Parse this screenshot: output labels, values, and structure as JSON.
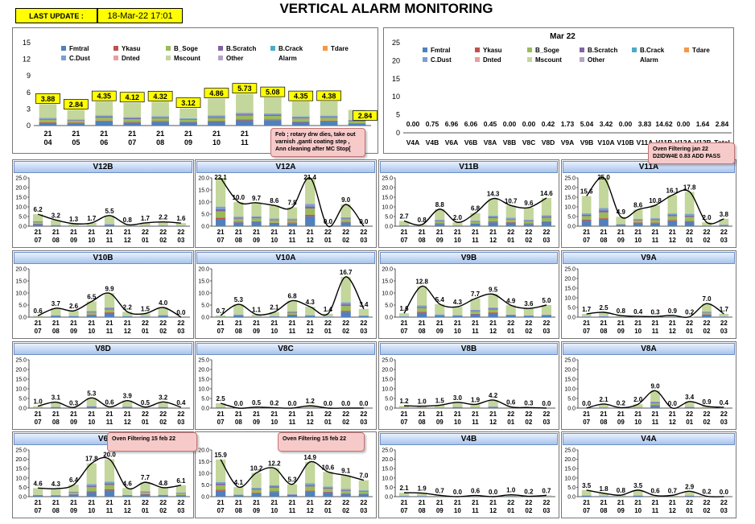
{
  "header": {
    "last_update_label": "LAST UPDATE :",
    "last_update_value": "18-Mar-22 17:01",
    "title": "VERTICAL ALARM MONITORING"
  },
  "legend": [
    "Fmtral",
    "Ykasu",
    "B_Soge",
    "B.Scratch",
    "B.Crack",
    "Tdare",
    "C.Dust",
    "Dnted",
    "Mscount",
    "Other",
    "Alarm"
  ],
  "colors": {
    "Fmtral": "#4f81bd",
    "Ykasu": "#c0504d",
    "B_Soge": "#9bbb59",
    "B.Scratch": "#8064a2",
    "B.Crack": "#4bacc6",
    "Tdare": "#f79646",
    "C.Dust": "#7ba0cd",
    "Dnted": "#e6a0a0",
    "Mscount": "#c3d69b",
    "Other": "#b3a2c7",
    "Alarm": "#ffffff"
  },
  "callouts": {
    "feb": "Feb ; rotary  drw dies, take out varnish ,ganti coating step , Ann cleaning  after MC Stop[",
    "v11a": "Oven Filtering  jan  22 D2IDW4E 0.83 ADD PASS",
    "v6": "Oven Filtering  15 feb 22",
    "v5": "Oven Filtering  15 feb 22"
  },
  "chart_data": [
    {
      "id": "top-left",
      "type": "bar",
      "categories": [
        "21 04",
        "21 05",
        "21 06",
        "21 07",
        "21 08",
        "21 09",
        "21 10",
        "21 11",
        "21 12",
        "22 01",
        "22 02",
        "22 03"
      ],
      "values": [
        3.88,
        2.84,
        4.35,
        4.12,
        4.32,
        3.12,
        4.86,
        5.73,
        5.08,
        4.35,
        4.38,
        2.84
      ],
      "ylim": [
        0,
        15
      ],
      "yticks": [
        0,
        3,
        6,
        9,
        12,
        15
      ]
    },
    {
      "id": "top-right",
      "type": "bar",
      "title": "Mar 22",
      "categories": [
        "V4A",
        "V4B",
        "V6A",
        "V6B",
        "V8A",
        "V8B",
        "V8C",
        "V8D",
        "V9A",
        "V9B",
        "V10A",
        "V10B",
        "V11A",
        "V11B",
        "V12A",
        "V12B",
        "Total"
      ],
      "values": [
        0.0,
        0.75,
        6.96,
        6.06,
        0.45,
        0.0,
        0.0,
        0.42,
        1.73,
        5.04,
        3.42,
        0.0,
        3.83,
        14.62,
        0.0,
        1.64,
        2.84
      ],
      "ylim": [
        0,
        25
      ],
      "yticks": [
        0,
        5,
        10,
        15,
        20,
        25
      ]
    },
    {
      "id": "V12B",
      "title": "V12B",
      "type": "bar",
      "categories": [
        "21 07",
        "21 08",
        "21 09",
        "21 10",
        "21 11",
        "21 12",
        "22 01",
        "22 02",
        "22 03"
      ],
      "values": [
        6.2,
        3.2,
        1.3,
        1.7,
        5.5,
        0.8,
        1.7,
        2.2,
        1.6
      ],
      "ylim": [
        0,
        25
      ],
      "yticks": [
        0,
        5,
        10,
        15,
        20,
        25
      ]
    },
    {
      "id": "V12A",
      "title": "V12A",
      "type": "bar",
      "categories": [
        "21 07",
        "21 08",
        "21 09",
        "21 10",
        "21 11",
        "21 12",
        "22 01",
        "22 02",
        "22 03"
      ],
      "values": [
        22.1,
        10.0,
        9.7,
        8.6,
        7.8,
        21.4,
        0.0,
        9.0,
        0.0
      ],
      "ylim": [
        0,
        20
      ],
      "yticks": [
        0,
        5,
        10,
        15,
        20
      ]
    },
    {
      "id": "V11B",
      "title": "V11B",
      "type": "bar",
      "categories": [
        "21 07",
        "21 08",
        "21 09",
        "21 10",
        "21 11",
        "21 12",
        "22 01",
        "22 02",
        "22 03"
      ],
      "values": [
        2.7,
        0.8,
        8.8,
        2.0,
        6.8,
        14.3,
        10.7,
        9.6,
        14.6
      ],
      "ylim": [
        0,
        25
      ],
      "yticks": [
        0,
        5,
        10,
        15,
        20,
        25
      ]
    },
    {
      "id": "V11A",
      "title": "V11A",
      "type": "bar",
      "categories": [
        "21 07",
        "21 08",
        "21 09",
        "21 10",
        "21 11",
        "21 12",
        "22 01",
        "22 02",
        "22 03"
      ],
      "values": [
        15.6,
        25.0,
        4.9,
        8.6,
        10.8,
        16.1,
        17.8,
        2.0,
        3.8
      ],
      "ylim": [
        0,
        25
      ],
      "yticks": [
        0,
        5,
        10,
        15,
        20,
        25
      ]
    },
    {
      "id": "V10B",
      "title": "V10B",
      "type": "bar",
      "categories": [
        "21 07",
        "21 08",
        "21 09",
        "21 10",
        "21 11",
        "21 12",
        "22 01",
        "22 02",
        "22 03"
      ],
      "values": [
        0.6,
        3.7,
        2.6,
        6.5,
        9.9,
        2.2,
        1.5,
        4.0,
        0.0
      ],
      "ylim": [
        0,
        20
      ],
      "yticks": [
        0,
        5,
        10,
        15,
        20
      ]
    },
    {
      "id": "V10A",
      "title": "V10A",
      "type": "bar",
      "categories": [
        "21 07",
        "21 08",
        "21 09",
        "21 10",
        "21 11",
        "21 12",
        "22 01",
        "22 02",
        "22 03"
      ],
      "values": [
        0.7,
        5.3,
        1.1,
        2.1,
        6.8,
        4.3,
        1.4,
        16.7,
        3.4
      ],
      "ylim": [
        0,
        20
      ],
      "yticks": [
        0,
        5,
        10,
        15,
        20
      ]
    },
    {
      "id": "V9B",
      "title": "V9B",
      "type": "bar",
      "categories": [
        "21 07",
        "21 08",
        "21 09",
        "21 10",
        "21 11",
        "21 12",
        "22 01",
        "22 02",
        "22 03"
      ],
      "values": [
        1.6,
        12.8,
        5.4,
        4.3,
        7.7,
        9.5,
        4.9,
        3.6,
        5.0
      ],
      "ylim": [
        0,
        20
      ],
      "yticks": [
        0,
        5,
        10,
        15,
        20
      ]
    },
    {
      "id": "V9A",
      "title": "V9A",
      "type": "bar",
      "categories": [
        "21 07",
        "21 08",
        "21 09",
        "21 10",
        "21 11",
        "21 12",
        "22 01",
        "22 02",
        "22 03"
      ],
      "values": [
        1.7,
        2.5,
        0.8,
        0.4,
        0.3,
        0.9,
        0.2,
        7.0,
        1.7
      ],
      "ylim": [
        0,
        25
      ],
      "yticks": [
        0,
        5,
        10,
        15,
        20,
        25
      ]
    },
    {
      "id": "V8D",
      "title": "V8D",
      "type": "bar",
      "categories": [
        "21 07",
        "21 08",
        "21 09",
        "21 10",
        "21 11",
        "21 12",
        "22 01",
        "22 02",
        "22 03"
      ],
      "values": [
        1.0,
        3.1,
        0.3,
        5.3,
        0.6,
        3.9,
        0.5,
        3.2,
        0.4
      ],
      "ylim": [
        0,
        25
      ],
      "yticks": [
        0,
        5,
        10,
        15,
        20,
        25
      ]
    },
    {
      "id": "V8C",
      "title": "V8C",
      "type": "bar",
      "categories": [
        "21 07",
        "21 08",
        "21 09",
        "21 10",
        "21 11",
        "21 12",
        "22 01",
        "22 02",
        "22 03"
      ],
      "values": [
        2.5,
        0.0,
        0.5,
        0.2,
        0.0,
        1.2,
        0.0,
        0.0,
        0.0
      ],
      "ylim": [
        0,
        25
      ],
      "yticks": [
        0,
        5,
        10,
        15,
        20,
        25
      ]
    },
    {
      "id": "V8B",
      "title": "V8B",
      "type": "bar",
      "categories": [
        "21 07",
        "21 08",
        "21 09",
        "21 10",
        "21 11",
        "21 12",
        "22 01",
        "22 02",
        "22 03"
      ],
      "values": [
        1.2,
        1.0,
        1.5,
        3.0,
        1.9,
        4.2,
        0.6,
        0.3,
        0.0
      ],
      "ylim": [
        0,
        25
      ],
      "yticks": [
        0,
        5,
        10,
        15,
        20,
        25
      ]
    },
    {
      "id": "V8A",
      "title": "V8A",
      "type": "bar",
      "categories": [
        "21 07",
        "21 08",
        "21 09",
        "21 10",
        "21 11",
        "21 12",
        "22 01",
        "22 02",
        "22 03"
      ],
      "values": [
        0.0,
        2.1,
        0.2,
        2.0,
        9.0,
        0.0,
        3.4,
        0.9,
        0.4
      ],
      "ylim": [
        0,
        25
      ],
      "yticks": [
        0,
        5,
        10,
        15,
        20,
        25
      ]
    },
    {
      "id": "V6",
      "title": "V6",
      "type": "bar",
      "categories": [
        "21 07",
        "21 08",
        "21 09",
        "21 10",
        "21 11",
        "21 12",
        "22 01",
        "22 02",
        "22 03"
      ],
      "values": [
        4.6,
        4.3,
        6.4,
        17.8,
        20.0,
        4.6,
        7.7,
        4.8,
        6.1
      ],
      "ylim": [
        0,
        25
      ],
      "yticks": [
        0,
        5,
        10,
        15,
        20,
        25
      ]
    },
    {
      "id": "V5",
      "title": "",
      "type": "bar",
      "categories": [
        "21 07",
        "21 08",
        "21 09",
        "21 10",
        "21 11",
        "21 12",
        "22 01",
        "22 02",
        "22 03"
      ],
      "values": [
        15.9,
        4.1,
        10.2,
        12.2,
        5.3,
        14.9,
        10.6,
        9.1,
        7.0
      ],
      "ylim": [
        0,
        20
      ],
      "yticks": [
        0,
        5,
        10,
        15,
        20
      ]
    },
    {
      "id": "V4B",
      "title": "V4B",
      "type": "bar",
      "categories": [
        "21 07",
        "21 08",
        "21 09",
        "21 10",
        "21 11",
        "21 12",
        "22 01",
        "22 02",
        "22 03"
      ],
      "values": [
        2.1,
        1.9,
        0.7,
        0.0,
        0.6,
        0.0,
        1.0,
        0.2,
        0.7
      ],
      "ylim": [
        0,
        25
      ],
      "yticks": [
        0,
        5,
        10,
        15,
        20,
        25
      ]
    },
    {
      "id": "V4A",
      "title": "V4A",
      "type": "bar",
      "categories": [
        "21 07",
        "21 08",
        "21 09",
        "21 10",
        "21 11",
        "21 12",
        "22 01",
        "22 02",
        "22 03"
      ],
      "values": [
        3.5,
        1.8,
        0.8,
        3.5,
        0.6,
        0.7,
        2.9,
        0.2,
        0.0
      ],
      "ylim": [
        0,
        25
      ],
      "yticks": [
        0,
        5,
        10,
        15,
        20,
        25
      ]
    }
  ]
}
